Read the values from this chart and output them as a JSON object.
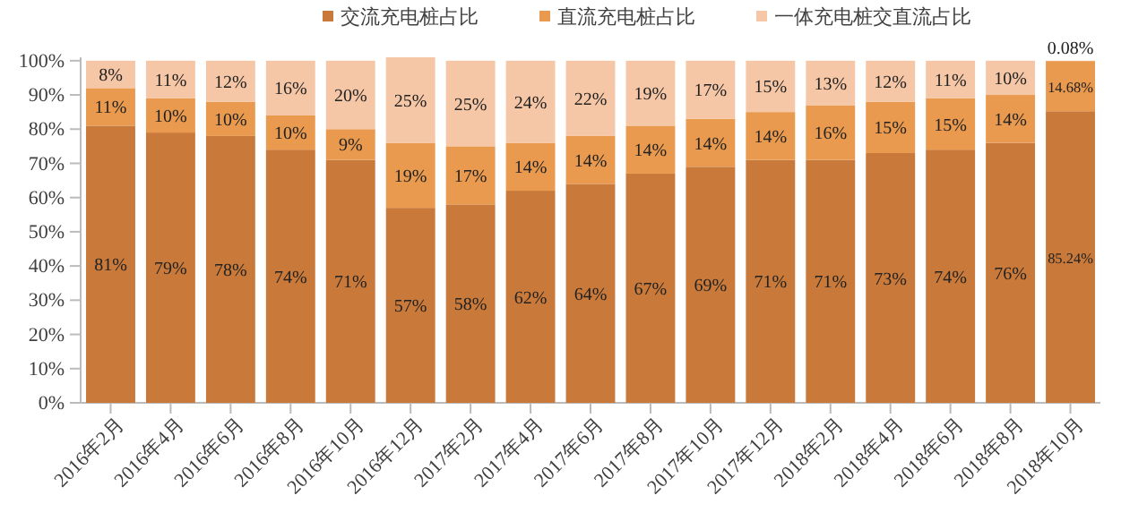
{
  "chart_data": {
    "type": "bar",
    "stacked": true,
    "legend": "top",
    "categories": [
      "2016年2月",
      "2016年4月",
      "2016年6月",
      "2016年8月",
      "2016年10月",
      "2016年12月",
      "2017年2月",
      "2017年4月",
      "2017年6月",
      "2017年8月",
      "2017年10月",
      "2017年12月",
      "2018年2月",
      "2018年4月",
      "2018年6月",
      "2018年8月",
      "2018年10月"
    ],
    "ylim": [
      0,
      101
    ],
    "yticks": [
      {
        "value": 0,
        "label": "0%"
      },
      {
        "value": 10,
        "label": "10%"
      },
      {
        "value": 20,
        "label": "20%"
      },
      {
        "value": 30,
        "label": "30%"
      },
      {
        "value": 40,
        "label": "40%"
      },
      {
        "value": 50,
        "label": "50%"
      },
      {
        "value": 60,
        "label": "60%"
      },
      {
        "value": 70,
        "label": "70%"
      },
      {
        "value": 80,
        "label": "80%"
      },
      {
        "value": 90,
        "label": "90%"
      },
      {
        "value": 100,
        "label": "100%"
      }
    ],
    "series": [
      {
        "name": "交流充电桩占比",
        "color": "#c97a3a",
        "values": [
          81,
          79,
          78,
          74,
          71,
          57,
          58,
          62,
          64,
          67,
          69,
          71,
          71,
          73,
          74,
          76,
          85.24
        ],
        "value_labels": [
          "81%",
          "79%",
          "78%",
          "74%",
          "71%",
          "57%",
          "58%",
          "62%",
          "64%",
          "67%",
          "69%",
          "71%",
          "71%",
          "73%",
          "74%",
          "76%",
          "85.24%"
        ]
      },
      {
        "name": "直流充电桩占比",
        "color": "#e99a4e",
        "values": [
          11,
          10,
          10,
          10,
          9,
          19,
          17,
          14,
          14,
          14,
          14,
          14,
          16,
          15,
          15,
          14,
          14.68
        ],
        "value_labels": [
          "11%",
          "10%",
          "10%",
          "10%",
          "9%",
          "19%",
          "17%",
          "14%",
          "14%",
          "14%",
          "14%",
          "14%",
          "16%",
          "15%",
          "15%",
          "14%",
          "14.68%"
        ]
      },
      {
        "name": "一体充电桩交直流占比",
        "color": "#f6c7a6",
        "values": [
          8,
          11,
          12,
          16,
          20,
          25,
          25,
          24,
          22,
          19,
          17,
          15,
          13,
          12,
          11,
          10,
          0.08
        ],
        "value_labels": [
          "8%",
          "11%",
          "12%",
          "16%",
          "20%",
          "25%",
          "25%",
          "24%",
          "22%",
          "19%",
          "17%",
          "15%",
          "13%",
          "12%",
          "11%",
          "10%",
          "0.08%"
        ]
      }
    ]
  }
}
